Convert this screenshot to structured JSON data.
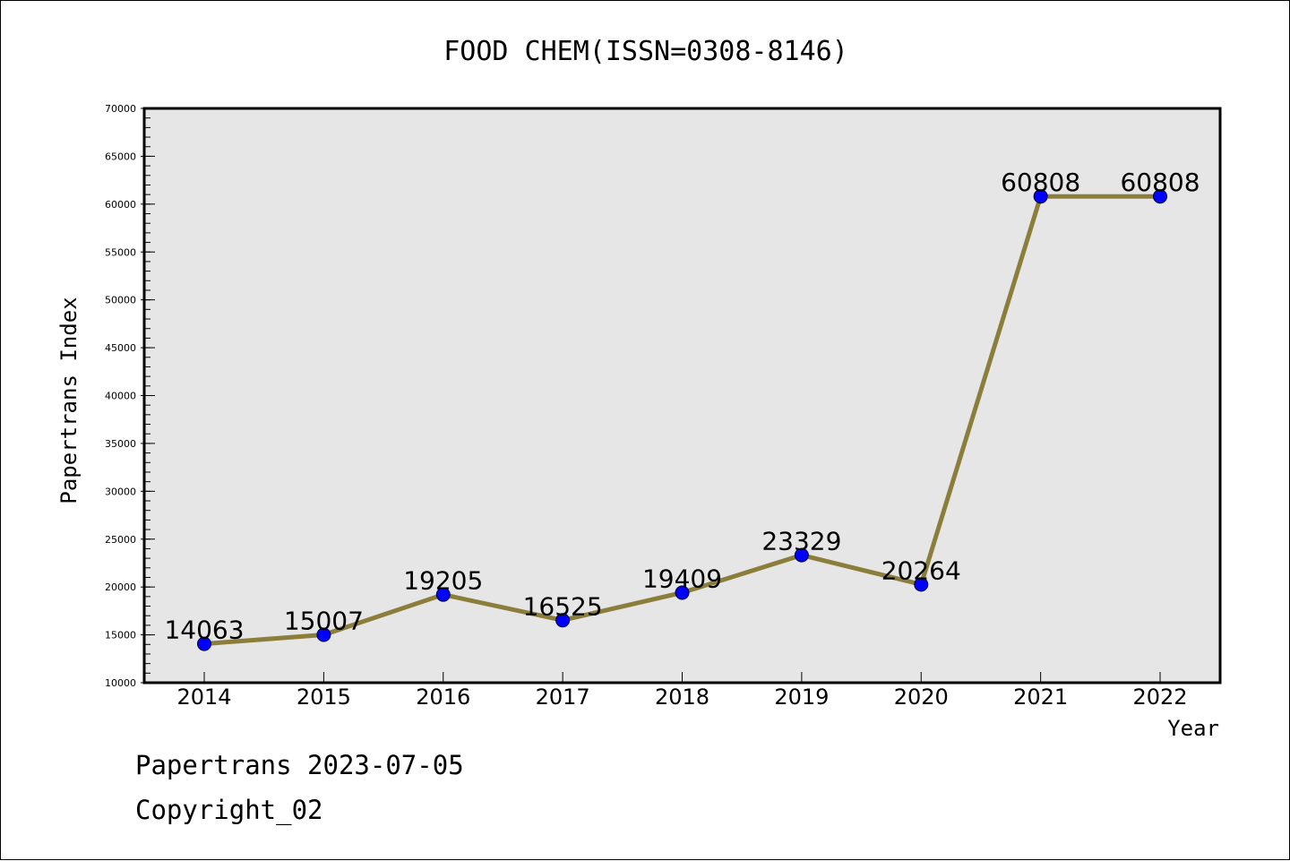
{
  "chart_data": {
    "type": "line",
    "title": "FOOD CHEM(ISSN=0308-8146)",
    "xlabel": "Year",
    "ylabel": "Papertrans Index",
    "categories": [
      "2014",
      "2015",
      "2016",
      "2017",
      "2018",
      "2019",
      "2020",
      "2021",
      "2022"
    ],
    "values": [
      14063,
      15007,
      19205,
      16525,
      19409,
      23329,
      20264,
      60808,
      60808
    ],
    "data_labels": [
      "14063",
      "15007",
      "19205",
      "16525",
      "19409",
      "23329",
      "20264",
      "60808",
      "60808"
    ],
    "ylim": [
      10000,
      70000
    ],
    "yticks": [
      10000,
      15000,
      20000,
      25000,
      30000,
      35000,
      40000,
      45000,
      50000,
      55000,
      60000,
      65000,
      70000
    ],
    "ytick_labels": [
      "10000",
      "15000",
      "20000",
      "25000",
      "30000",
      "35000",
      "40000",
      "45000",
      "50000",
      "55000",
      "60000",
      "65000",
      "70000"
    ],
    "grid": false,
    "colors": {
      "line": "#8B7D3A",
      "marker": "#0000FF",
      "plot_background": "#E6E6E6"
    }
  },
  "footer": {
    "line1": "Papertrans 2023-07-05",
    "line2": "Copyright_02"
  }
}
